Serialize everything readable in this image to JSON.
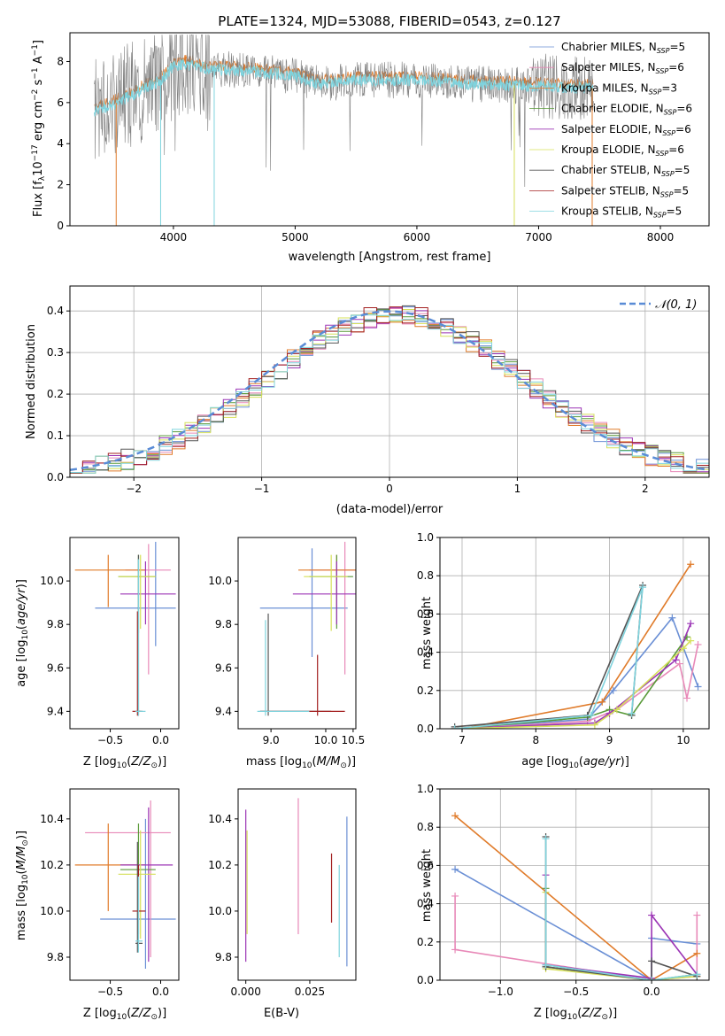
{
  "figure": {
    "title": "PLATE=1324, MJD=53088, FIBERID=0543, z=0.127"
  },
  "legend_entries": [
    {
      "label": "Chabrier MILES, N",
      "sub": "SSP",
      "tail": "=5",
      "color": "#6a8fd5"
    },
    {
      "label": "Salpeter MILES, N",
      "sub": "SSP",
      "tail": "=6",
      "color": "#e889b8"
    },
    {
      "label": "Kroupa MILES, N",
      "sub": "SSP",
      "tail": "=3",
      "color": "#e07b2a"
    },
    {
      "label": "Chabrier ELODIE, N",
      "sub": "SSP",
      "tail": "=6",
      "color": "#5a9a3a"
    },
    {
      "label": "Salpeter ELODIE, N",
      "sub": "SSP",
      "tail": "=6",
      "color": "#9b34b5"
    },
    {
      "label": "Kroupa ELODIE, N",
      "sub": "SSP",
      "tail": "=6",
      "color": "#d6e05a"
    },
    {
      "label": "Chabrier STELIB, N",
      "sub": "SSP",
      "tail": "=5",
      "color": "#555555"
    },
    {
      "label": "Salpeter STELIB, N",
      "sub": "SSP",
      "tail": "=5",
      "color": "#a32020"
    },
    {
      "label": "Kroupa STELIB, N",
      "sub": "SSP",
      "tail": "=5",
      "color": "#7fd3dd"
    }
  ],
  "chart_data": [
    {
      "id": "spectrum",
      "type": "line",
      "xlabel": "wavelength [Angstrom, rest frame]",
      "ylabel": "Flux [f",
      "xlim": [
        3150,
        8400
      ],
      "ylim": [
        0,
        9.4
      ],
      "xticks": [
        4000,
        5000,
        6000,
        7000,
        8000
      ],
      "yticks": [
        0,
        2,
        4,
        6,
        8
      ],
      "data_color": "#808080",
      "model_color": "#7fd3dd",
      "under_color": "#e07b2a",
      "continuum": [
        {
          "x": 3350,
          "y": 5.6
        },
        {
          "x": 3500,
          "y": 5.9
        },
        {
          "x": 3700,
          "y": 6.5
        },
        {
          "x": 3900,
          "y": 7.1
        },
        {
          "x": 4000,
          "y": 7.8
        },
        {
          "x": 4100,
          "y": 7.9
        },
        {
          "x": 4300,
          "y": 7.6
        },
        {
          "x": 4500,
          "y": 7.6
        },
        {
          "x": 5000,
          "y": 7.3
        },
        {
          "x": 5200,
          "y": 6.9
        },
        {
          "x": 5500,
          "y": 7.1
        },
        {
          "x": 6000,
          "y": 7.1
        },
        {
          "x": 6500,
          "y": 6.9
        },
        {
          "x": 7000,
          "y": 6.8
        },
        {
          "x": 7450,
          "y": 6.7
        }
      ]
    },
    {
      "id": "residuals",
      "type": "histogram",
      "xlabel": "(data-model)/error",
      "ylabel": "Normed distribution",
      "xlim": [
        -2.5,
        2.5
      ],
      "ylim": [
        0,
        0.46
      ],
      "xticks": [
        -2,
        -1,
        0,
        1,
        2
      ],
      "yticks": [
        0.0,
        0.1,
        0.2,
        0.3,
        0.4
      ],
      "gaussian_label": "𝒩(0, 1)",
      "gaussian_color": "#5a8cd6",
      "bin_width": 0.1,
      "bin_start": -2.5
    },
    {
      "id": "age-vs-Z",
      "type": "errorbar",
      "xlabel": "Z [log",
      "ylabel": "age  [log",
      "xlim": [
        -0.9,
        0.18
      ],
      "ylim": [
        9.32,
        10.2
      ],
      "xticks": [
        -0.5,
        0.0
      ],
      "yticks": [
        9.4,
        9.6,
        9.8,
        10.0
      ]
    },
    {
      "id": "age-vs-mass",
      "type": "errorbar",
      "xlabel": "mass [log",
      "xlim": [
        8.4,
        10.55
      ],
      "ylim": [
        9.32,
        10.2
      ],
      "xticks": [
        9,
        10,
        10.5
      ],
      "xtick_labels": [
        "9.0",
        "10.0",
        "10.5"
      ],
      "yticks": [
        9.4,
        9.6,
        9.8,
        10.0
      ]
    },
    {
      "id": "weight-vs-age",
      "type": "line",
      "xlabel": "age  [log",
      "ylabel": "mass weight",
      "xlim": [
        6.7,
        10.35
      ],
      "ylim": [
        0,
        1.0
      ],
      "xticks": [
        7,
        8,
        9,
        10
      ],
      "yticks": [
        0.0,
        0.2,
        0.4,
        0.6,
        0.8,
        1.0
      ]
    },
    {
      "id": "mass-vs-Z",
      "type": "errorbar",
      "xlabel": "Z [log",
      "ylabel": "mass [log",
      "xlim": [
        -0.9,
        0.18
      ],
      "ylim": [
        9.7,
        10.53
      ],
      "xticks": [
        -0.5,
        0.0
      ],
      "yticks": [
        9.8,
        10.0,
        10.2,
        10.4
      ]
    },
    {
      "id": "mass-vs-ebv",
      "type": "errorbar",
      "xlabel": "E(B-V)",
      "xlim": [
        -0.003,
        0.043
      ],
      "ylim": [
        9.7,
        10.53
      ],
      "xticks": [
        0.0,
        0.025
      ],
      "xtick_labels": [
        "0.000",
        "0.025"
      ],
      "yticks": [
        9.8,
        10.0,
        10.2,
        10.4
      ]
    },
    {
      "id": "weight-vs-Z",
      "type": "line",
      "xlabel": "Z [log",
      "ylabel": "mass weight",
      "xlim": [
        -1.4,
        0.38
      ],
      "ylim": [
        0,
        1.0
      ],
      "xticks": [
        -1.0,
        -0.5,
        0.0
      ],
      "yticks": [
        0.0,
        0.2,
        0.4,
        0.6,
        0.8,
        1.0
      ]
    }
  ]
}
